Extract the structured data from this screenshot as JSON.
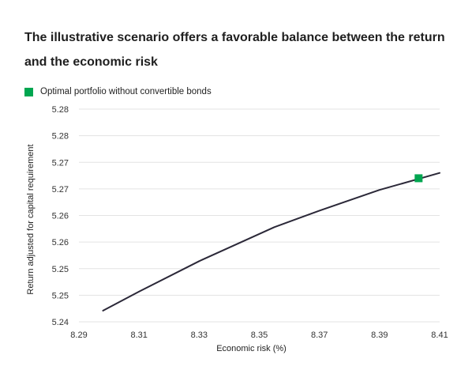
{
  "chart_data": {
    "type": "line",
    "title": "The illustrative scenario offers a favorable balance between the return and the economic risk",
    "xlabel": "Economic risk (%)",
    "ylabel": "Return adjusted for capital requirement",
    "x_ticks": [
      "8.29",
      "8.31",
      "8.33",
      "8.35",
      "8.37",
      "8.39",
      "8.41"
    ],
    "y_ticks": [
      "5.28",
      "5.28",
      "5.27",
      "5.27",
      "5.26",
      "5.26",
      "5.25",
      "5.25",
      "5.24"
    ],
    "xlim": [
      8.29,
      8.41
    ],
    "ylim": [
      5.24,
      5.28
    ],
    "grid": "horizontal",
    "series": [
      {
        "type": "line",
        "color": "#2b2838",
        "x": [
          8.298,
          8.31,
          8.33,
          8.355,
          8.37,
          8.39,
          8.41
        ],
        "y": [
          5.2421,
          5.2457,
          5.2514,
          5.2578,
          5.2609,
          5.2648,
          5.268
        ]
      }
    ],
    "highlight": {
      "name": "Optimal portfolio without convertible bonds",
      "x": 8.403,
      "y": 5.267,
      "color": "#00a650",
      "marker": "square"
    },
    "legend": {
      "position": "top-left",
      "entries": [
        "Optimal portfolio without convertible bonds"
      ]
    }
  }
}
